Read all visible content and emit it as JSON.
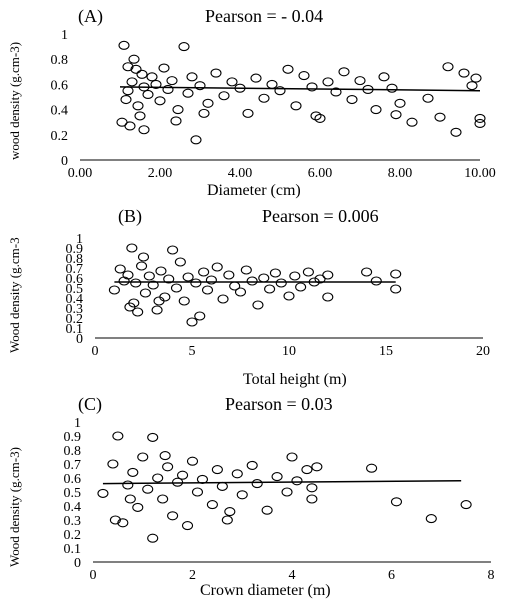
{
  "panels": [
    {
      "label": "(A)",
      "pearson": "Pearson = - 0.04",
      "xlabel": "Diameter (cm)",
      "ylabel": "wood density (g.cm-3)",
      "x_ticks": [
        "0.00",
        "2.00",
        "4.00",
        "6.00",
        "8.00",
        "10.00"
      ],
      "y_ticks": [
        "0",
        "0.2",
        "0.4",
        "0.6",
        "0.8",
        "1"
      ]
    },
    {
      "label": "(B)",
      "pearson": "Pearson = 0.006",
      "xlabel": "Total height (m)",
      "ylabel": "Wood density (g.cm-3",
      "x_ticks": [
        "0",
        "5",
        "10",
        "15",
        "20"
      ],
      "y_ticks": [
        "0",
        "0.1",
        "0.2",
        "0.3",
        "0.4",
        "0.5",
        "0.6",
        "0.7",
        "0.8",
        "0.9",
        "1"
      ]
    },
    {
      "label": "(C)",
      "pearson": "Pearson = 0.03",
      "xlabel": "Crown diameter (m)",
      "ylabel": "Wood density (g.cm-3)",
      "x_ticks": [
        "0",
        "2",
        "4",
        "6",
        "8"
      ],
      "y_ticks": [
        "0",
        "0.1",
        "0.2",
        "0.3",
        "0.4",
        "0.5",
        "0.6",
        "0.7",
        "0.8",
        "0.9",
        "1"
      ]
    }
  ],
  "chart_data": [
    {
      "type": "scatter",
      "title": "Pearson = - 0.04",
      "xlabel": "Diameter (cm)",
      "ylabel": "wood density (g.cm-3)",
      "xlim": [
        0,
        10
      ],
      "ylim": [
        0,
        1
      ],
      "grid": false,
      "marker": "open-circle",
      "points": [
        [
          1.1,
          0.91
        ],
        [
          1.2,
          0.55
        ],
        [
          1.3,
          0.62
        ],
        [
          1.15,
          0.48
        ],
        [
          1.4,
          0.72
        ],
        [
          1.5,
          0.35
        ],
        [
          1.6,
          0.58
        ],
        [
          1.8,
          0.66
        ],
        [
          1.25,
          0.27
        ],
        [
          1.35,
          0.8
        ],
        [
          1.45,
          0.43
        ],
        [
          1.55,
          0.68
        ],
        [
          1.7,
          0.52
        ],
        [
          1.9,
          0.6
        ],
        [
          2.0,
          0.47
        ],
        [
          2.1,
          0.73
        ],
        [
          2.2,
          0.56
        ],
        [
          2.3,
          0.63
        ],
        [
          2.45,
          0.4
        ],
        [
          2.6,
          0.9
        ],
        [
          2.7,
          0.53
        ],
        [
          2.8,
          0.66
        ],
        [
          2.9,
          0.16
        ],
        [
          3.0,
          0.59
        ],
        [
          3.2,
          0.45
        ],
        [
          3.4,
          0.69
        ],
        [
          3.6,
          0.51
        ],
        [
          3.8,
          0.62
        ],
        [
          4.0,
          0.57
        ],
        [
          4.2,
          0.37
        ],
        [
          4.4,
          0.65
        ],
        [
          4.6,
          0.49
        ],
        [
          4.8,
          0.6
        ],
        [
          5.0,
          0.55
        ],
        [
          5.2,
          0.72
        ],
        [
          5.4,
          0.43
        ],
        [
          5.6,
          0.67
        ],
        [
          5.8,
          0.58
        ],
        [
          6.0,
          0.33
        ],
        [
          6.2,
          0.62
        ],
        [
          6.4,
          0.54
        ],
        [
          6.6,
          0.7
        ],
        [
          6.8,
          0.48
        ],
        [
          7.0,
          0.63
        ],
        [
          7.2,
          0.56
        ],
        [
          7.4,
          0.4
        ],
        [
          7.6,
          0.66
        ],
        [
          7.8,
          0.57
        ],
        [
          8.0,
          0.45
        ],
        [
          8.3,
          0.3
        ],
        [
          8.7,
          0.49
        ],
        [
          9.0,
          0.34
        ],
        [
          9.2,
          0.74
        ],
        [
          9.4,
          0.22
        ],
        [
          9.6,
          0.69
        ],
        [
          9.8,
          0.59
        ],
        [
          10.0,
          0.33
        ],
        [
          10.0,
          0.29
        ],
        [
          9.9,
          0.65
        ],
        [
          1.05,
          0.3
        ],
        [
          1.6,
          0.24
        ],
        [
          1.2,
          0.74
        ],
        [
          2.4,
          0.31
        ],
        [
          3.1,
          0.37
        ],
        [
          5.9,
          0.35
        ],
        [
          7.9,
          0.36
        ]
      ],
      "trend_line": [
        [
          1.0,
          0.58
        ],
        [
          10.0,
          0.55
        ]
      ]
    },
    {
      "type": "scatter",
      "title": "Pearson = 0.006",
      "xlabel": "Total height (m)",
      "ylabel": "Wood density (g.cm-3",
      "xlim": [
        0,
        20
      ],
      "ylim": [
        0,
        1
      ],
      "grid": false,
      "marker": "open-circle",
      "points": [
        [
          1.0,
          0.48
        ],
        [
          1.3,
          0.69
        ],
        [
          1.5,
          0.57
        ],
        [
          1.7,
          0.63
        ],
        [
          1.9,
          0.9
        ],
        [
          2.0,
          0.35
        ],
        [
          2.1,
          0.55
        ],
        [
          2.2,
          0.26
        ],
        [
          2.4,
          0.72
        ],
        [
          2.6,
          0.45
        ],
        [
          2.8,
          0.62
        ],
        [
          3.0,
          0.53
        ],
        [
          3.2,
          0.28
        ],
        [
          3.4,
          0.67
        ],
        [
          3.6,
          0.41
        ],
        [
          3.8,
          0.59
        ],
        [
          4.0,
          0.88
        ],
        [
          4.2,
          0.5
        ],
        [
          4.4,
          0.76
        ],
        [
          4.6,
          0.37
        ],
        [
          4.8,
          0.61
        ],
        [
          5.0,
          0.16
        ],
        [
          5.2,
          0.55
        ],
        [
          5.4,
          0.22
        ],
        [
          5.6,
          0.66
        ],
        [
          5.8,
          0.48
        ],
        [
          6.0,
          0.58
        ],
        [
          6.3,
          0.71
        ],
        [
          6.6,
          0.39
        ],
        [
          6.9,
          0.63
        ],
        [
          7.2,
          0.52
        ],
        [
          7.5,
          0.46
        ],
        [
          7.8,
          0.68
        ],
        [
          8.1,
          0.57
        ],
        [
          8.4,
          0.33
        ],
        [
          8.7,
          0.6
        ],
        [
          9.0,
          0.49
        ],
        [
          9.3,
          0.65
        ],
        [
          9.6,
          0.55
        ],
        [
          10.0,
          0.42
        ],
        [
          10.3,
          0.62
        ],
        [
          10.6,
          0.51
        ],
        [
          11.0,
          0.66
        ],
        [
          11.3,
          0.56
        ],
        [
          11.6,
          0.59
        ],
        [
          12.0,
          0.63
        ],
        [
          14.0,
          0.66
        ],
        [
          14.5,
          0.57
        ],
        [
          15.5,
          0.64
        ],
        [
          15.5,
          0.49
        ],
        [
          1.8,
          0.31
        ],
        [
          2.5,
          0.81
        ],
        [
          3.3,
          0.37
        ],
        [
          12.0,
          0.41
        ]
      ],
      "trend_line": [
        [
          1.0,
          0.56
        ],
        [
          15.5,
          0.56
        ]
      ]
    },
    {
      "type": "scatter",
      "title": "Pearson = 0.03",
      "xlabel": "Crown diameter (m)",
      "ylabel": "Wood density (g.cm-3)",
      "xlim": [
        0,
        8
      ],
      "ylim": [
        0,
        1
      ],
      "grid": false,
      "marker": "open-circle",
      "points": [
        [
          0.2,
          0.49
        ],
        [
          0.4,
          0.7
        ],
        [
          0.5,
          0.9
        ],
        [
          0.6,
          0.28
        ],
        [
          0.7,
          0.55
        ],
        [
          0.8,
          0.64
        ],
        [
          0.9,
          0.39
        ],
        [
          1.0,
          0.75
        ],
        [
          1.1,
          0.52
        ],
        [
          1.2,
          0.89
        ],
        [
          1.2,
          0.17
        ],
        [
          1.3,
          0.6
        ],
        [
          1.4,
          0.45
        ],
        [
          1.5,
          0.68
        ],
        [
          1.6,
          0.33
        ],
        [
          1.7,
          0.57
        ],
        [
          1.8,
          0.62
        ],
        [
          1.9,
          0.26
        ],
        [
          2.0,
          0.72
        ],
        [
          2.1,
          0.5
        ],
        [
          2.2,
          0.59
        ],
        [
          2.4,
          0.41
        ],
        [
          2.5,
          0.66
        ],
        [
          2.6,
          0.54
        ],
        [
          2.7,
          0.3
        ],
        [
          2.9,
          0.63
        ],
        [
          3.0,
          0.48
        ],
        [
          3.2,
          0.69
        ],
        [
          3.3,
          0.56
        ],
        [
          3.5,
          0.37
        ],
        [
          3.7,
          0.61
        ],
        [
          3.9,
          0.5
        ],
        [
          4.0,
          0.75
        ],
        [
          4.1,
          0.58
        ],
        [
          4.3,
          0.66
        ],
        [
          4.4,
          0.45
        ],
        [
          4.5,
          0.68
        ],
        [
          4.4,
          0.53
        ],
        [
          5.6,
          0.67
        ],
        [
          6.1,
          0.43
        ],
        [
          6.8,
          0.31
        ],
        [
          7.5,
          0.41
        ],
        [
          0.45,
          0.3
        ],
        [
          0.75,
          0.45
        ],
        [
          1.45,
          0.76
        ],
        [
          2.75,
          0.36
        ]
      ],
      "trend_line": [
        [
          0.2,
          0.56
        ],
        [
          7.4,
          0.58
        ]
      ]
    }
  ]
}
